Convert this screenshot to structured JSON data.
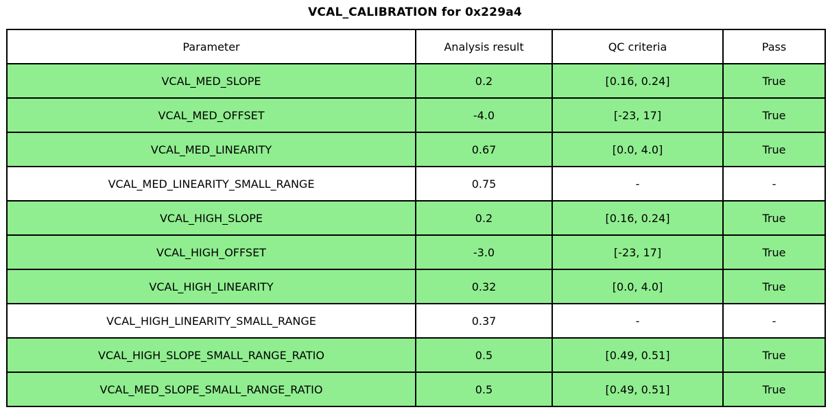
{
  "title": "VCAL_CALIBRATION for 0x229a4",
  "colors": {
    "pass_green": "#90EE90",
    "border": "#000000",
    "background": "#FFFFFF"
  },
  "table": {
    "columns": [
      "Parameter",
      "Analysis result",
      "QC criteria",
      "Pass"
    ],
    "rows": [
      {
        "parameter": "VCAL_MED_SLOPE",
        "result": "0.2",
        "criteria": "[0.16, 0.24]",
        "pass": "True",
        "status": "pass"
      },
      {
        "parameter": "VCAL_MED_OFFSET",
        "result": "-4.0",
        "criteria": "[-23, 17]",
        "pass": "True",
        "status": "pass"
      },
      {
        "parameter": "VCAL_MED_LINEARITY",
        "result": "0.67",
        "criteria": "[0.0, 4.0]",
        "pass": "True",
        "status": "pass"
      },
      {
        "parameter": "VCAL_MED_LINEARITY_SMALL_RANGE",
        "result": "0.75",
        "criteria": "-",
        "pass": "-",
        "status": "na"
      },
      {
        "parameter": "VCAL_HIGH_SLOPE",
        "result": "0.2",
        "criteria": "[0.16, 0.24]",
        "pass": "True",
        "status": "pass"
      },
      {
        "parameter": "VCAL_HIGH_OFFSET",
        "result": "-3.0",
        "criteria": "[-23, 17]",
        "pass": "True",
        "status": "pass"
      },
      {
        "parameter": "VCAL_HIGH_LINEARITY",
        "result": "0.32",
        "criteria": "[0.0, 4.0]",
        "pass": "True",
        "status": "pass"
      },
      {
        "parameter": "VCAL_HIGH_LINEARITY_SMALL_RANGE",
        "result": "0.37",
        "criteria": "-",
        "pass": "-",
        "status": "na"
      },
      {
        "parameter": "VCAL_HIGH_SLOPE_SMALL_RANGE_RATIO",
        "result": "0.5",
        "criteria": "[0.49, 0.51]",
        "pass": "True",
        "status": "pass"
      },
      {
        "parameter": "VCAL_MED_SLOPE_SMALL_RANGE_RATIO",
        "result": "0.5",
        "criteria": "[0.49, 0.51]",
        "pass": "True",
        "status": "pass"
      }
    ]
  },
  "chart_data": {
    "type": "table",
    "title": "VCAL_CALIBRATION for 0x229a4",
    "columns": [
      "Parameter",
      "Analysis result",
      "QC criteria",
      "Pass"
    ],
    "rows": [
      [
        "VCAL_MED_SLOPE",
        "0.2",
        "[0.16, 0.24]",
        "True"
      ],
      [
        "VCAL_MED_OFFSET",
        "-4.0",
        "[-23, 17]",
        "True"
      ],
      [
        "VCAL_MED_LINEARITY",
        "0.67",
        "[0.0, 4.0]",
        "True"
      ],
      [
        "VCAL_MED_LINEARITY_SMALL_RANGE",
        "0.75",
        "-",
        "-"
      ],
      [
        "VCAL_HIGH_SLOPE",
        "0.2",
        "[0.16, 0.24]",
        "True"
      ],
      [
        "VCAL_HIGH_OFFSET",
        "-3.0",
        "[-23, 17]",
        "True"
      ],
      [
        "VCAL_HIGH_LINEARITY",
        "0.32",
        "[0.0, 4.0]",
        "True"
      ],
      [
        "VCAL_HIGH_LINEARITY_SMALL_RANGE",
        "0.37",
        "-",
        "-"
      ],
      [
        "VCAL_HIGH_SLOPE_SMALL_RANGE_RATIO",
        "0.5",
        "[0.49, 0.51]",
        "True"
      ],
      [
        "VCAL_MED_SLOPE_SMALL_RANGE_RATIO",
        "0.5",
        "[0.49, 0.51]",
        "True"
      ]
    ],
    "row_highlight_color": "#90EE90",
    "highlighted_rows": [
      0,
      1,
      2,
      4,
      5,
      6,
      8,
      9
    ]
  }
}
